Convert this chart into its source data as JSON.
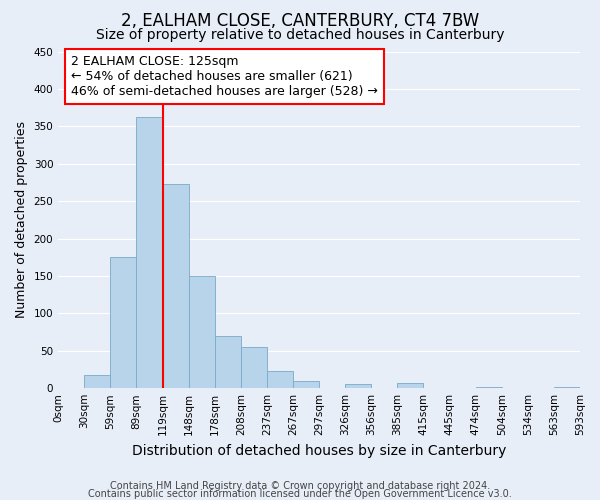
{
  "title": "2, EALHAM CLOSE, CANTERBURY, CT4 7BW",
  "subtitle": "Size of property relative to detached houses in Canterbury",
  "xlabel": "Distribution of detached houses by size in Canterbury",
  "ylabel": "Number of detached properties",
  "bar_color": "#b8d4ea",
  "bar_edge_color": "#7aaac8",
  "bg_color": "#e8eef8",
  "grid_color": "#ffffff",
  "bin_labels": [
    "0sqm",
    "30sqm",
    "59sqm",
    "89sqm",
    "119sqm",
    "148sqm",
    "178sqm",
    "208sqm",
    "237sqm",
    "267sqm",
    "297sqm",
    "326sqm",
    "356sqm",
    "385sqm",
    "415sqm",
    "445sqm",
    "474sqm",
    "504sqm",
    "534sqm",
    "563sqm",
    "593sqm"
  ],
  "bar_heights": [
    0,
    18,
    176,
    363,
    273,
    150,
    70,
    55,
    23,
    9,
    0,
    5,
    0,
    7,
    0,
    0,
    1,
    0,
    0,
    1
  ],
  "ylim": [
    0,
    450
  ],
  "yticks": [
    0,
    50,
    100,
    150,
    200,
    250,
    300,
    350,
    400,
    450
  ],
  "vline_bin_index": 4,
  "annotation_title": "2 EALHAM CLOSE: 125sqm",
  "annotation_line1": "← 54% of detached houses are smaller (621)",
  "annotation_line2": "46% of semi-detached houses are larger (528) →",
  "footnote1": "Contains HM Land Registry data © Crown copyright and database right 2024.",
  "footnote2": "Contains public sector information licensed under the Open Government Licence v3.0.",
  "title_fontsize": 12,
  "subtitle_fontsize": 10,
  "xlabel_fontsize": 10,
  "ylabel_fontsize": 9,
  "tick_fontsize": 7.5,
  "annotation_fontsize": 9,
  "footnote_fontsize": 7
}
